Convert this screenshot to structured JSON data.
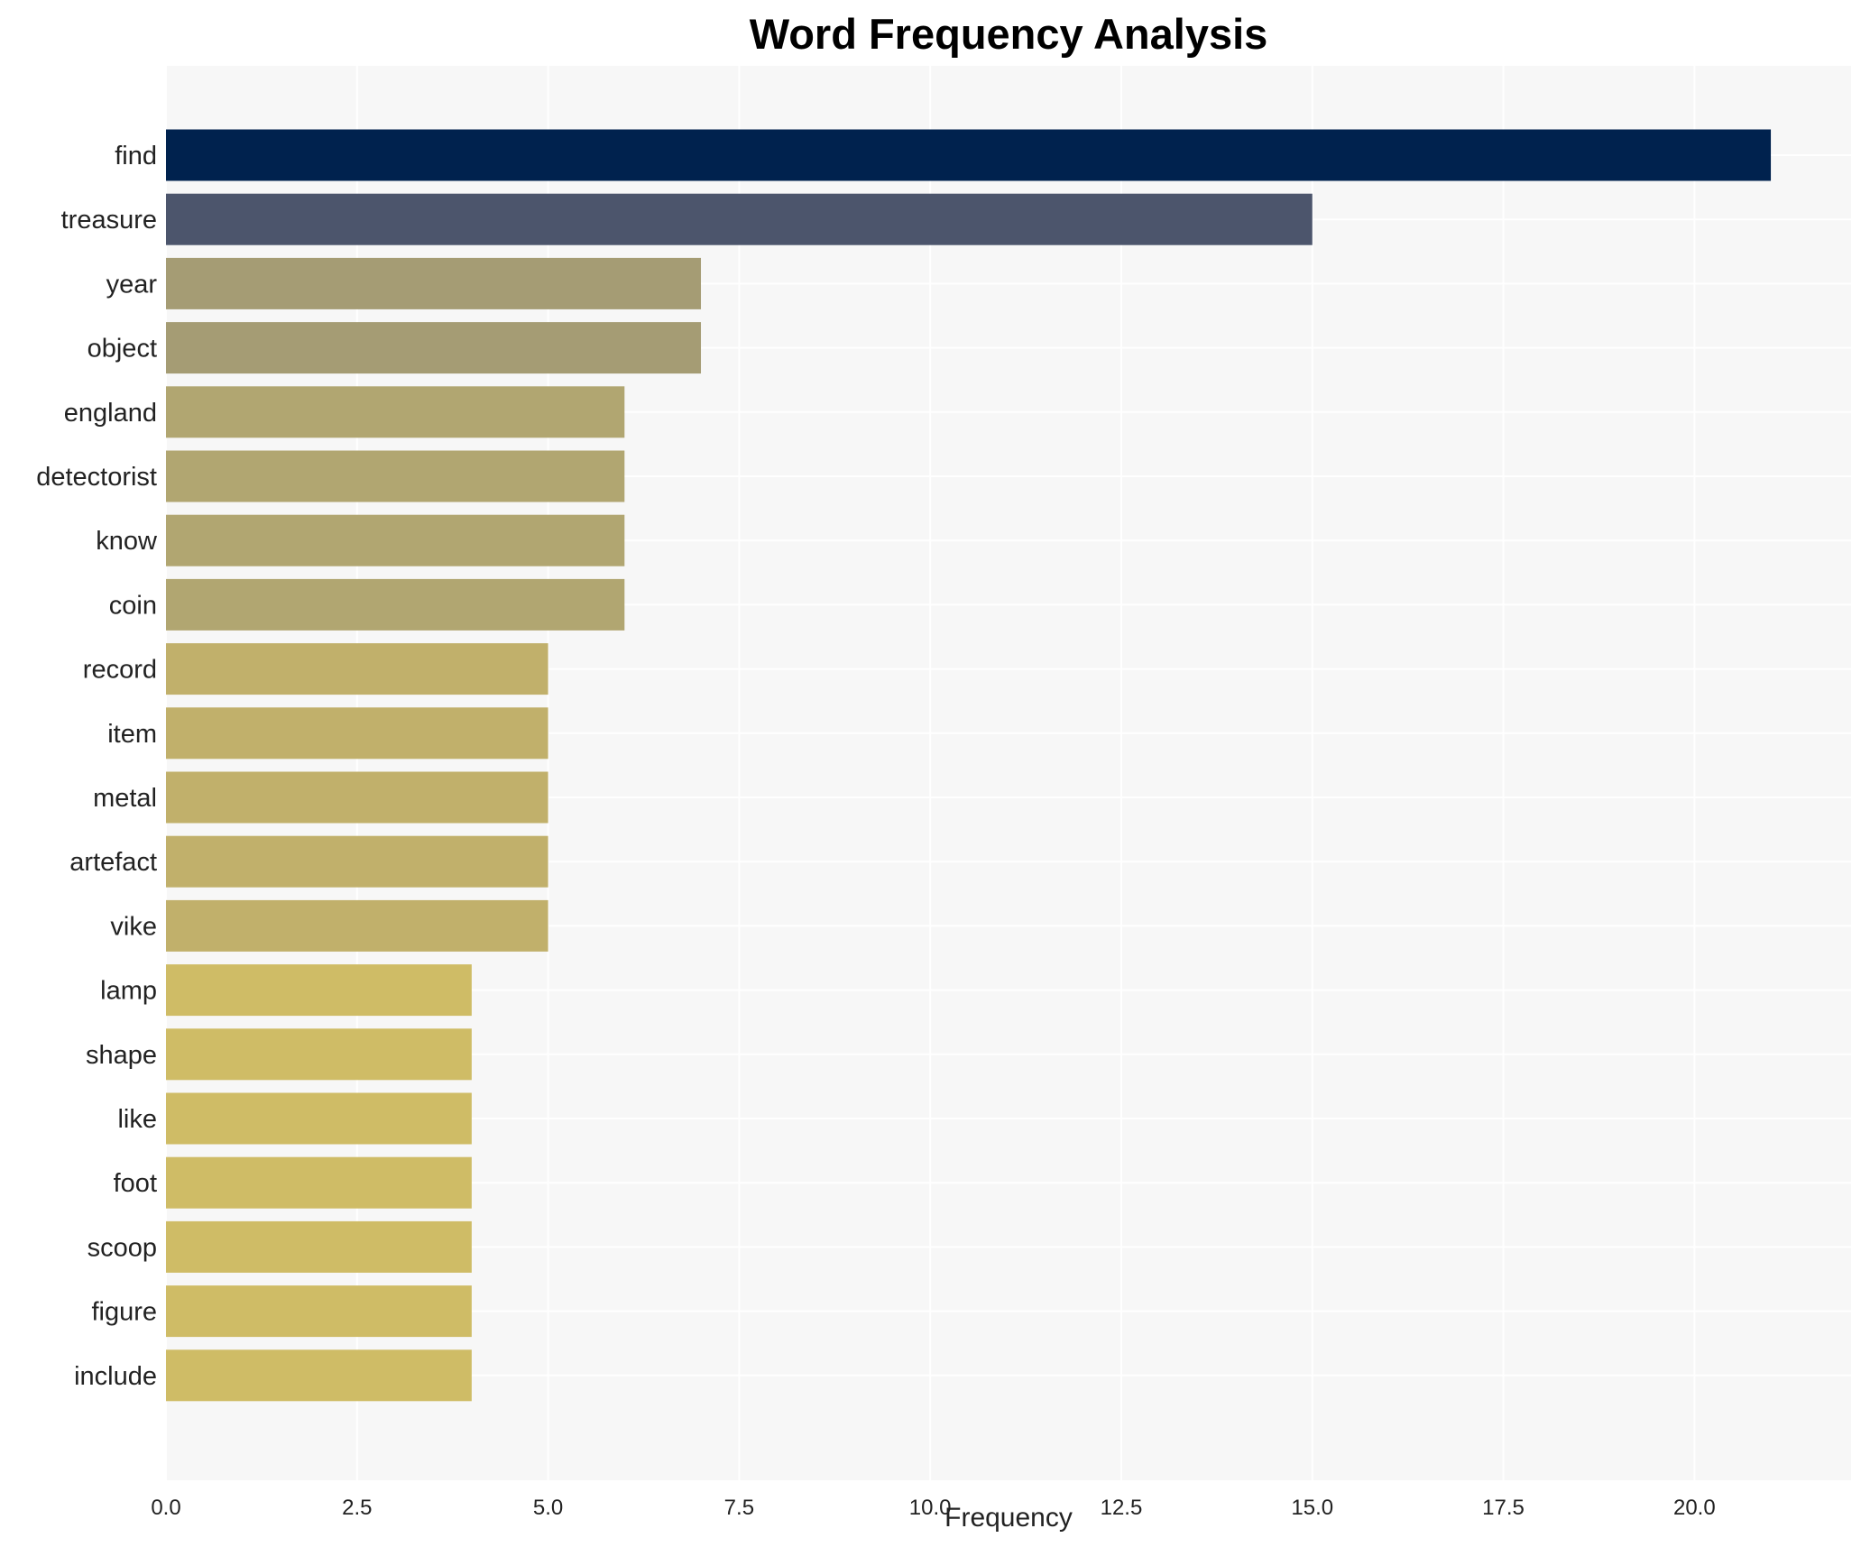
{
  "chart_data": {
    "type": "bar",
    "orientation": "horizontal",
    "title": "Word Frequency Analysis",
    "xlabel": "Frequency",
    "ylabel": "",
    "xlim": [
      0,
      22.05
    ],
    "xticks": [
      "0.0",
      "2.5",
      "5.0",
      "7.5",
      "10.0",
      "12.5",
      "15.0",
      "17.5",
      "20.0"
    ],
    "grid": true,
    "categories": [
      "find",
      "treasure",
      "year",
      "object",
      "england",
      "detectorist",
      "know",
      "coin",
      "record",
      "item",
      "metal",
      "artefact",
      "vike",
      "lamp",
      "shape",
      "like",
      "foot",
      "scoop",
      "figure",
      "include"
    ],
    "values": [
      21,
      15,
      7,
      7,
      6,
      6,
      6,
      6,
      5,
      5,
      5,
      5,
      5,
      4,
      4,
      4,
      4,
      4,
      4,
      4
    ],
    "colors": [
      "#00224e",
      "#4c556c",
      "#a59c74",
      "#a59c74",
      "#b1a671",
      "#b1a671",
      "#b1a671",
      "#b1a671",
      "#c1b06b",
      "#c1b06b",
      "#c1b06b",
      "#c1b06b",
      "#c1b06b",
      "#cfbc66",
      "#cfbc66",
      "#cfbc66",
      "#cfbc66",
      "#cfbc66",
      "#cfbc66",
      "#cfbc66"
    ],
    "background": "#f7f7f7"
  }
}
